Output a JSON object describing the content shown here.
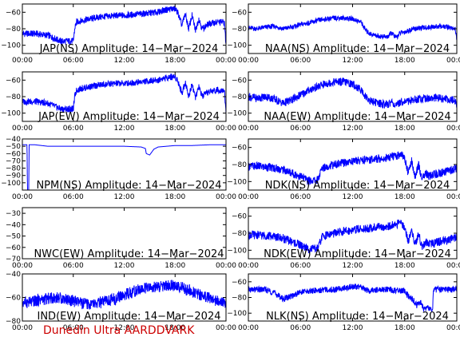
{
  "footer": "Dunedin Ultra AARDDVARK",
  "chart_data": {
    "type": "line",
    "x_tick_labels": [
      "00:00",
      "06:00",
      "12:00",
      "18:00",
      "00:00"
    ],
    "xlim_hours": [
      0,
      24
    ],
    "line_color": "#0000ff",
    "grid": false,
    "panels": [
      {
        "name": "JAP-NS",
        "title": "JAP(NS) Amplitude: 14−Mar−2024",
        "ylim": [
          -110,
          -50
        ],
        "yticks": [
          -60,
          -80,
          -100
        ],
        "x": [
          0,
          1.5,
          3,
          4.5,
          6,
          6.2,
          6.4,
          7,
          8,
          9,
          10,
          11,
          12,
          13,
          14,
          15,
          16,
          16.5,
          17,
          17.5,
          18,
          18.3,
          18.8,
          19.2,
          19.6,
          20,
          20.4,
          20.8,
          21.2,
          22,
          23,
          23.8,
          24
        ],
        "y": [
          -86,
          -86,
          -88,
          -95,
          -95,
          -78,
          -72,
          -70,
          -68,
          -66,
          -65,
          -64,
          -64,
          -63,
          -62,
          -61,
          -60,
          -58,
          -57,
          -56,
          -56,
          -60,
          -76,
          -62,
          -80,
          -64,
          -82,
          -68,
          -80,
          -74,
          -72,
          -72,
          -100
        ],
        "band": 4
      },
      {
        "name": "NAA-NS",
        "title": "NAA(NS) Amplitude: 14−Mar−2024",
        "ylim": [
          -110,
          -50
        ],
        "yticks": [
          -60,
          -80,
          -100
        ],
        "x": [
          0,
          1,
          2,
          3,
          4,
          5,
          6,
          7,
          8,
          9,
          10,
          11,
          12,
          13,
          13.5,
          14,
          15,
          16,
          16.5,
          17,
          17.5,
          18,
          19,
          20,
          21,
          22,
          23,
          23.8,
          24
        ],
        "y": [
          -79,
          -80,
          -78,
          -77,
          -80,
          -78,
          -75,
          -73,
          -70,
          -68,
          -67,
          -67,
          -68,
          -72,
          -82,
          -86,
          -89,
          -90,
          -85,
          -91,
          -85,
          -84,
          -80,
          -79,
          -78,
          -77,
          -78,
          -80,
          -92
        ],
        "band": 3
      },
      {
        "name": "JAP-EW",
        "title": "JAP(EW) Amplitude: 14−Mar−2024",
        "ylim": [
          -110,
          -50
        ],
        "yticks": [
          -60,
          -80,
          -100
        ],
        "x": [
          0,
          1.5,
          3,
          4.5,
          6,
          6.2,
          6.4,
          7,
          8,
          9,
          10,
          11,
          12,
          13,
          14,
          15,
          16,
          16.5,
          17,
          17.5,
          18,
          18.3,
          18.8,
          19.2,
          19.6,
          20,
          20.4,
          20.8,
          21.2,
          22,
          23,
          23.8,
          24
        ],
        "y": [
          -86,
          -86,
          -88,
          -95,
          -95,
          -78,
          -72,
          -70,
          -68,
          -66,
          -65,
          -64,
          -64,
          -63,
          -62,
          -61,
          -60,
          -58,
          -57,
          -56,
          -56,
          -60,
          -76,
          -62,
          -80,
          -64,
          -82,
          -68,
          -80,
          -74,
          -72,
          -72,
          -100
        ],
        "band": 4
      },
      {
        "name": "NAA-EW",
        "title": "NAA(EW) Amplitude: 14−Mar−2024",
        "ylim": [
          -110,
          -50
        ],
        "yticks": [
          -60,
          -80,
          -100
        ],
        "x": [
          0,
          1,
          2,
          3,
          4,
          5,
          6,
          7,
          8,
          9,
          10,
          11,
          12,
          13,
          13.5,
          14,
          15,
          16,
          16.5,
          17,
          17.5,
          18,
          19,
          20,
          21,
          22,
          23,
          23.8,
          24
        ],
        "y": [
          -80,
          -82,
          -80,
          -83,
          -88,
          -84,
          -78,
          -72,
          -68,
          -64,
          -62,
          -62,
          -65,
          -72,
          -80,
          -85,
          -88,
          -90,
          -86,
          -92,
          -86,
          -86,
          -84,
          -82,
          -82,
          -82,
          -83,
          -85,
          -90
        ],
        "band": 5
      },
      {
        "name": "NPM-NS",
        "title": "NPM(NS) Amplitude: 14−Mar−2024",
        "ylim": [
          -110,
          -40
        ],
        "yticks": [
          -40,
          -50,
          -60,
          -70,
          -80,
          -90,
          -100
        ],
        "x": [
          0,
          0.55,
          0.6,
          0.75,
          0.8,
          1.5,
          3,
          6,
          9,
          12,
          14,
          14.5,
          14.6,
          15,
          15.5,
          16,
          17,
          18,
          20,
          22,
          24
        ],
        "y": [
          -48,
          -48,
          -110,
          -110,
          -48,
          -48,
          -50,
          -50,
          -50,
          -50,
          -51,
          -53,
          -60,
          -62,
          -54,
          -51,
          -50,
          -49,
          -49,
          -48,
          -48
        ],
        "band": 0
      },
      {
        "name": "NDK-NS",
        "title": "NDK(NS) Amplitude: 14−Mar−2024",
        "ylim": [
          -110,
          -50
        ],
        "yticks": [
          -60,
          -80,
          -100
        ],
        "x": [
          0,
          1,
          2,
          3,
          4,
          5,
          6,
          7,
          8,
          8.5,
          9,
          10,
          11,
          12,
          13,
          14,
          15,
          16,
          17,
          17.5,
          18,
          18.4,
          18.8,
          19.2,
          19.6,
          20,
          20.4,
          20.8,
          21.2,
          22,
          23,
          24
        ],
        "y": [
          -82,
          -82,
          -83,
          -84,
          -86,
          -90,
          -94,
          -99,
          -98,
          -84,
          -82,
          -80,
          -78,
          -76,
          -75,
          -74,
          -73,
          -72,
          -70,
          -68,
          -72,
          -90,
          -76,
          -94,
          -80,
          -98,
          -90,
          -94,
          -92,
          -90,
          -88,
          -84
        ],
        "band": 5
      },
      {
        "name": "NWC-EW",
        "title": "NWC(EW) Amplitude: 14−Mar−2024",
        "ylim": [
          -70,
          -25
        ],
        "yticks": [
          -30,
          -40,
          -50,
          -60,
          -70
        ],
        "x": [],
        "y": [],
        "band": 0
      },
      {
        "name": "NDK-EW",
        "title": "NDK(EW) Amplitude: 14−Mar−2024",
        "ylim": [
          -110,
          -50
        ],
        "yticks": [
          -60,
          -80,
          -100
        ],
        "x": [
          0,
          1,
          2,
          3,
          4,
          5,
          6,
          7,
          8,
          8.5,
          9,
          10,
          11,
          12,
          13,
          14,
          15,
          16,
          17,
          17.5,
          18,
          18.4,
          18.8,
          19.2,
          19.6,
          20,
          20.4,
          20.8,
          21.2,
          22,
          23,
          24
        ],
        "y": [
          -82,
          -82,
          -83,
          -84,
          -86,
          -90,
          -94,
          -99,
          -98,
          -84,
          -82,
          -80,
          -78,
          -76,
          -75,
          -74,
          -73,
          -72,
          -70,
          -68,
          -72,
          -90,
          -76,
          -94,
          -80,
          -98,
          -90,
          -94,
          -92,
          -90,
          -88,
          -84
        ],
        "band": 5
      },
      {
        "name": "IND-EW",
        "title": "IND(EW) Amplitude: 14−Mar−2024",
        "ylim": [
          -80,
          -40
        ],
        "yticks": [
          -40,
          -60,
          -80
        ],
        "x": [
          0,
          1,
          2,
          3,
          4,
          5,
          6,
          7,
          8,
          9,
          10,
          11,
          12,
          13,
          14,
          15,
          16,
          17,
          18,
          19,
          20,
          21,
          22,
          23,
          24
        ],
        "y": [
          -64,
          -64,
          -62,
          -61,
          -60,
          -61,
          -63,
          -65,
          -66,
          -65,
          -63,
          -61,
          -58,
          -55,
          -53,
          -52,
          -51,
          -50,
          -50,
          -52,
          -55,
          -58,
          -60,
          -63,
          -66
        ],
        "band": 5
      },
      {
        "name": "NLK-NS",
        "title": "NLK(NS) Amplitude: 14−Mar−2024",
        "ylim": [
          -110,
          -50
        ],
        "yticks": [
          -60,
          -80,
          -100
        ],
        "x": [
          0,
          1,
          2,
          3,
          4,
          5,
          6,
          7,
          8,
          9,
          10,
          11,
          12,
          13,
          14,
          15,
          16,
          17,
          18,
          18.5,
          19,
          19.4,
          19.8,
          20.2,
          20.6,
          21,
          21.2,
          21.3,
          22,
          23,
          24
        ],
        "y": [
          -70,
          -70,
          -70,
          -74,
          -82,
          -78,
          -73,
          -72,
          -71,
          -70,
          -70,
          -68,
          -66,
          -67,
          -72,
          -70,
          -70,
          -71,
          -72,
          -80,
          -84,
          -90,
          -86,
          -96,
          -92,
          -96,
          -98,
          -70,
          -70,
          -70,
          -70
        ],
        "band": 4
      }
    ]
  }
}
